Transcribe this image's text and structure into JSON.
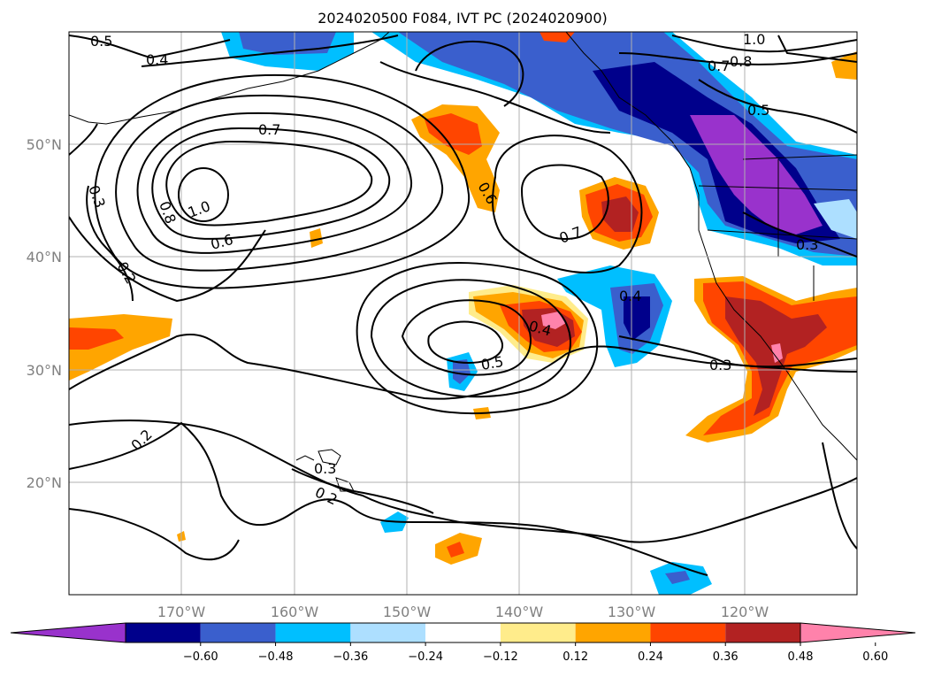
{
  "title": "2024020500 F084, IVT PC (2024020900)",
  "map": {
    "lon_range": [
      -180,
      -110
    ],
    "lat_range": [
      10,
      60
    ],
    "lon_ticks": [
      "170°W",
      "160°W",
      "150°W",
      "140°W",
      "130°W",
      "120°W"
    ],
    "lat_ticks": [
      "50°N",
      "40°N",
      "30°N",
      "20°N"
    ],
    "gridlines": true,
    "contour_color": "#000000",
    "contour_labels": [
      "0.5",
      "0.4",
      "0.7",
      "0.3",
      "0.8",
      "1.0",
      "0.6",
      "0.2",
      "0.7",
      "0.6",
      "0.8",
      "0.5",
      "1.0",
      "0.7",
      "0.4",
      "0.4",
      "0.5",
      "0.3",
      "0.3",
      "0.2",
      "0.3",
      "0.2"
    ]
  },
  "colorbar": {
    "ticks": [
      "−0.60",
      "−0.48",
      "−0.36",
      "−0.24",
      "−0.12",
      "0.12",
      "0.24",
      "0.36",
      "0.48",
      "0.60"
    ],
    "colors": [
      "#9932CC",
      "#00008B",
      "#3A5FCD",
      "#00BFFF",
      "#ADDFFF",
      "#FFFFFF",
      "#FFEC8B",
      "#FFA500",
      "#FF4500",
      "#B22222",
      "#FF82AB"
    ],
    "extend": "both"
  }
}
